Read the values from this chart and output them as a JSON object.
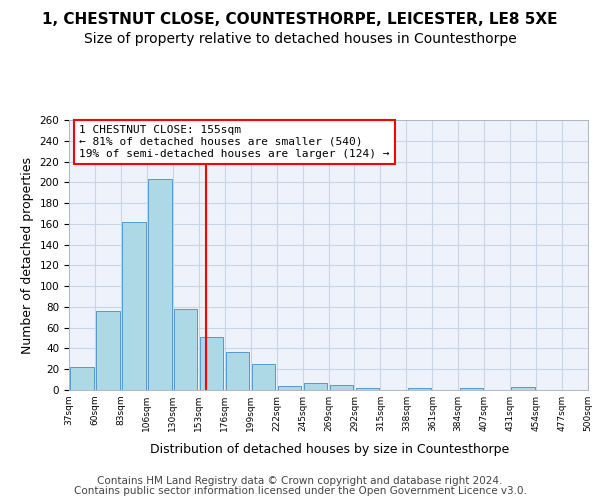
{
  "title1": "1, CHESTNUT CLOSE, COUNTESTHORPE, LEICESTER, LE8 5XE",
  "title2": "Size of property relative to detached houses in Countesthorpe",
  "xlabel": "Distribution of detached houses by size in Countesthorpe",
  "ylabel": "Number of detached properties",
  "bar_color": "#add8e6",
  "bar_edge_color": "#5599cc",
  "bar_values": [
    22,
    76,
    162,
    203,
    78,
    51,
    37,
    25,
    4,
    7,
    5,
    2,
    0,
    2,
    0,
    2,
    0,
    3,
    0,
    0
  ],
  "tick_labels": [
    "37sqm",
    "60sqm",
    "83sqm",
    "106sqm",
    "130sqm",
    "153sqm",
    "176sqm",
    "199sqm",
    "222sqm",
    "245sqm",
    "269sqm",
    "292sqm",
    "315sqm",
    "338sqm",
    "361sqm",
    "384sqm",
    "407sqm",
    "431sqm",
    "454sqm",
    "477sqm",
    "500sqm"
  ],
  "property_line_bin_index": 4.78,
  "annotation_text": "1 CHESTNUT CLOSE: 155sqm\n← 81% of detached houses are smaller (540)\n19% of semi-detached houses are larger (124) →",
  "annotation_box_color": "white",
  "annotation_box_edge": "red",
  "vline_color": "red",
  "grid_color": "#c8d4e8",
  "background_color": "#eef2fb",
  "ylim": [
    0,
    260
  ],
  "yticks": [
    0,
    20,
    40,
    60,
    80,
    100,
    120,
    140,
    160,
    180,
    200,
    220,
    240,
    260
  ],
  "footer1": "Contains HM Land Registry data © Crown copyright and database right 2024.",
  "footer2": "Contains public sector information licensed under the Open Government Licence v3.0.",
  "title1_fontsize": 11,
  "title2_fontsize": 10,
  "xlabel_fontsize": 9,
  "ylabel_fontsize": 9,
  "annotation_fontsize": 8,
  "footer_fontsize": 7.5
}
